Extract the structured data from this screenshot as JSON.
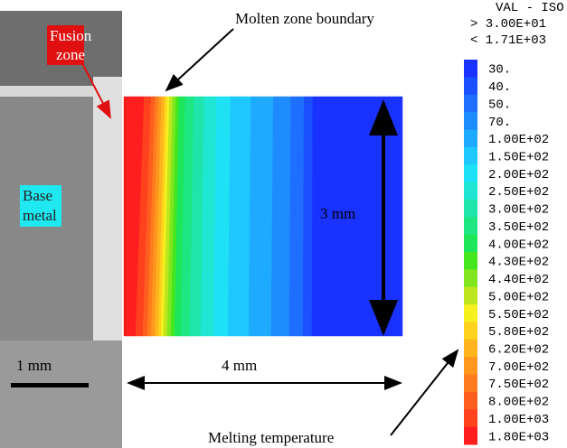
{
  "annotations": {
    "fusion_zone": [
      "Fusion",
      "zone"
    ],
    "base_metal": [
      "Base",
      "metal"
    ],
    "scale_bar": "1 mm",
    "molten_boundary": "Molten zone boundary",
    "height": "3 mm",
    "width": "4 mm",
    "melting": "Melting temperature"
  },
  "legend": {
    "header": "VAL - ISO",
    "max": "> 3.00E+01",
    "min": "< 1.71E+03",
    "levels": [
      {
        "label": "30.",
        "color": "#1a32ff"
      },
      {
        "label": "40.",
        "color": "#1a50ff"
      },
      {
        "label": "50.",
        "color": "#1e6eff"
      },
      {
        "label": "70.",
        "color": "#1e8cff"
      },
      {
        "label": "1.00E+02",
        "color": "#1eaaff"
      },
      {
        "label": "1.50E+02",
        "color": "#1ec8ff"
      },
      {
        "label": "2.00E+02",
        "color": "#1ee1f5"
      },
      {
        "label": "2.50E+02",
        "color": "#1ee6d2"
      },
      {
        "label": "3.00E+02",
        "color": "#1ee6aa"
      },
      {
        "label": "3.50E+02",
        "color": "#1ee682"
      },
      {
        "label": "4.00E+02",
        "color": "#1ee65a"
      },
      {
        "label": "4.30E+02",
        "color": "#46e61e"
      },
      {
        "label": "4.40E+02",
        "color": "#82e61e"
      },
      {
        "label": "5.00E+02",
        "color": "#bee61e"
      },
      {
        "label": "5.50E+02",
        "color": "#f5f01e"
      },
      {
        "label": "5.80E+02",
        "color": "#ffd21e"
      },
      {
        "label": "6.20E+02",
        "color": "#ffb41e"
      },
      {
        "label": "7.00E+02",
        "color": "#ff961e"
      },
      {
        "label": "7.50E+02",
        "color": "#ff7d1e"
      },
      {
        "label": "8.00E+02",
        "color": "#ff5f1e"
      },
      {
        "label": "1.00E+03",
        "color": "#ff411e"
      },
      {
        "label": "1.80E+03",
        "color": "#ff1e1e"
      }
    ]
  }
}
